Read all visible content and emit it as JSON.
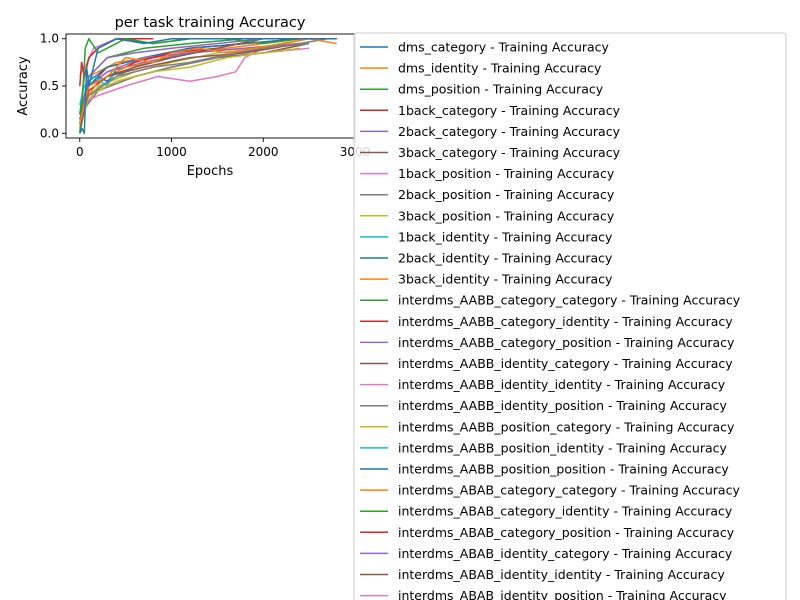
{
  "chart_data": {
    "type": "line",
    "title": "per task training Accuracy",
    "xlabel": "Epochs",
    "ylabel": "Accuracy",
    "xlim": [
      -150,
      3000
    ],
    "ylim": [
      -0.05,
      1.05
    ],
    "xticks": [
      0,
      1000,
      2000,
      3000
    ],
    "xtick_labels": [
      "0",
      "1000",
      "2000",
      "3000"
    ],
    "yticks": [
      0.0,
      0.5,
      1.0
    ],
    "ytick_labels": [
      "0.0",
      "0.5",
      "1.0"
    ],
    "grid": false,
    "legend_placement": "right, outside plot",
    "colors": [
      "#1f77b4",
      "#ff7f0e",
      "#2ca02c",
      "#d62728",
      "#9467bd",
      "#8c564b",
      "#e377c2",
      "#7f7f7f",
      "#bcbd22",
      "#17becf"
    ],
    "series": [
      {
        "name": "dms_category - Training Accuracy",
        "x": [
          0,
          25,
          50,
          75,
          100,
          200,
          400,
          700,
          1000,
          1500,
          2000,
          2500,
          2800
        ],
        "values": [
          0.0,
          0.05,
          0.0,
          0.7,
          0.5,
          0.9,
          1.0,
          0.95,
          1.0,
          1.0,
          1.0,
          1.0,
          1.0
        ]
      },
      {
        "name": "dms_identity - Training Accuracy",
        "x": [
          0,
          50,
          100,
          300,
          500,
          800,
          1000,
          1300,
          1600,
          1900,
          2200,
          2500,
          2800
        ],
        "values": [
          0.1,
          0.3,
          0.5,
          0.6,
          0.8,
          0.75,
          0.85,
          0.9,
          0.85,
          0.9,
          0.95,
          1.0,
          0.95
        ]
      },
      {
        "name": "dms_position - Training Accuracy",
        "x": [
          0,
          30,
          60,
          100,
          200,
          500,
          800,
          1200,
          1600,
          2000,
          2400,
          2800
        ],
        "values": [
          0.0,
          0.4,
          0.9,
          1.0,
          0.85,
          1.0,
          0.95,
          1.0,
          1.0,
          0.95,
          1.0,
          1.0
        ]
      },
      {
        "name": "1back_category - Training Accuracy",
        "x": [
          0,
          20,
          50,
          100,
          200,
          400,
          800
        ],
        "values": [
          0.5,
          0.75,
          0.6,
          0.8,
          0.9,
          1.0,
          1.0
        ]
      },
      {
        "name": "2back_category - Training Accuracy",
        "x": [
          0,
          50,
          100,
          300,
          600,
          1000,
          1500,
          2000
        ],
        "values": [
          0.1,
          0.4,
          0.6,
          0.8,
          0.85,
          0.9,
          0.95,
          1.0
        ]
      },
      {
        "name": "3back_category - Training Accuracy",
        "x": [
          0,
          100,
          300,
          600,
          1000,
          1500,
          2000
        ],
        "values": [
          0.0,
          0.5,
          0.6,
          0.7,
          0.8,
          0.9,
          1.0
        ]
      },
      {
        "name": "1back_position - Training Accuracy",
        "x": [
          0,
          20,
          60,
          150,
          400,
          800
        ],
        "values": [
          0.6,
          0.65,
          0.7,
          0.9,
          1.0,
          1.0
        ]
      },
      {
        "name": "2back_position - Training Accuracy",
        "x": [
          0,
          100,
          400,
          800,
          1200,
          1700,
          2000,
          2400,
          2700
        ],
        "values": [
          0.2,
          0.4,
          0.6,
          0.7,
          0.75,
          0.85,
          0.9,
          0.95,
          1.0
        ]
      },
      {
        "name": "3back_position - Training Accuracy",
        "x": [
          0,
          100,
          400,
          800,
          1200,
          1600,
          2000,
          2400
        ],
        "values": [
          0.1,
          0.4,
          0.55,
          0.65,
          0.7,
          0.8,
          0.85,
          0.9
        ]
      },
      {
        "name": "1back_identity - Training Accuracy",
        "x": [
          0,
          50,
          150,
          300,
          400
        ],
        "values": [
          0.3,
          0.5,
          0.6,
          0.5,
          0.7
        ]
      },
      {
        "name": "2back_identity - Training Accuracy",
        "x": [
          0,
          50,
          100,
          200,
          300,
          400
        ],
        "values": [
          0.2,
          0.35,
          0.5,
          0.6,
          0.55,
          0.65
        ]
      },
      {
        "name": "3back_identity - Training Accuracy",
        "x": [
          0,
          100,
          200,
          300,
          500,
          800,
          1000
        ],
        "values": [
          0.2,
          0.4,
          0.55,
          0.6,
          0.7,
          0.75,
          0.8
        ]
      },
      {
        "name": "interdms_AABB_category_category - Training Accuracy",
        "x": [
          0,
          50,
          100,
          200,
          400,
          800,
          1200,
          1600,
          2000,
          2400,
          2800
        ],
        "values": [
          0.2,
          0.6,
          0.8,
          0.9,
          1.0,
          0.95,
          1.0,
          1.0,
          1.0,
          1.0,
          1.0
        ]
      },
      {
        "name": "interdms_AABB_category_identity - Training Accuracy",
        "x": [
          0,
          100,
          300,
          600,
          1000,
          1500,
          2000
        ],
        "values": [
          0.1,
          0.45,
          0.6,
          0.75,
          0.85,
          0.9,
          1.0
        ]
      },
      {
        "name": "interdms_AABB_category_position - Training Accuracy",
        "x": [
          0,
          100,
          300,
          700,
          1200,
          1800,
          2400
        ],
        "values": [
          0.15,
          0.5,
          0.65,
          0.8,
          0.85,
          0.9,
          0.95
        ]
      },
      {
        "name": "interdms_AABB_identity_category - Training Accuracy",
        "x": [
          0,
          100,
          300,
          700,
          1200,
          1800,
          2400
        ],
        "values": [
          0.1,
          0.45,
          0.6,
          0.7,
          0.8,
          0.85,
          0.95
        ]
      },
      {
        "name": "interdms_AABB_identity_identity - Training Accuracy",
        "x": [
          0,
          200,
          500,
          850,
          1200,
          1500,
          1700,
          1800,
          2000
        ],
        "values": [
          0.3,
          0.4,
          0.5,
          0.6,
          0.55,
          0.6,
          0.65,
          0.8,
          0.9
        ]
      },
      {
        "name": "interdms_AABB_identity_position - Training Accuracy",
        "x": [
          0,
          200,
          600,
          1000,
          1500,
          2000,
          2500
        ],
        "values": [
          0.2,
          0.45,
          0.6,
          0.7,
          0.8,
          0.9,
          0.95
        ]
      },
      {
        "name": "interdms_AABB_position_category - Training Accuracy",
        "x": [
          0,
          200,
          600,
          1000,
          1500,
          2000,
          2500
        ],
        "values": [
          0.2,
          0.5,
          0.65,
          0.75,
          0.85,
          0.9,
          1.0
        ]
      },
      {
        "name": "interdms_AABB_position_identity - Training Accuracy",
        "x": [
          0,
          100,
          300,
          600,
          1000,
          1500
        ],
        "values": [
          0.15,
          0.4,
          0.55,
          0.7,
          0.8,
          0.9
        ]
      },
      {
        "name": "interdms_AABB_position_position - Training Accuracy",
        "x": [
          0,
          100,
          300,
          700,
          1200,
          1800,
          2400
        ],
        "values": [
          0.2,
          0.55,
          0.7,
          0.8,
          0.9,
          0.95,
          1.0
        ]
      },
      {
        "name": "interdms_ABAB_category_category - Training Accuracy",
        "x": [
          0,
          100,
          400,
          800,
          1200,
          1600,
          2000,
          2400,
          2800
        ],
        "values": [
          0.2,
          0.6,
          0.75,
          0.8,
          0.85,
          0.9,
          0.95,
          1.0,
          1.0
        ]
      },
      {
        "name": "interdms_ABAB_category_identity - Training Accuracy",
        "x": [
          0,
          100,
          300,
          700,
          1200,
          1800,
          2400,
          2800
        ],
        "values": [
          0.2,
          0.6,
          0.8,
          0.9,
          0.95,
          1.0,
          1.0,
          1.0
        ]
      },
      {
        "name": "interdms_ABAB_category_position - Training Accuracy",
        "x": [
          0,
          100,
          300,
          700,
          1200,
          1800,
          2400
        ],
        "values": [
          0.2,
          0.5,
          0.7,
          0.8,
          0.9,
          0.95,
          1.0
        ]
      },
      {
        "name": "interdms_ABAB_identity_category - Training Accuracy",
        "x": [
          0,
          100,
          300,
          700,
          1200,
          1800,
          2400
        ],
        "values": [
          0.15,
          0.5,
          0.65,
          0.75,
          0.85,
          0.9,
          0.95
        ]
      },
      {
        "name": "interdms_ABAB_identity_identity - Training Accuracy",
        "x": [
          0,
          200,
          600,
          1000,
          1500,
          2000,
          2500
        ],
        "values": [
          0.2,
          0.45,
          0.6,
          0.7,
          0.8,
          0.85,
          0.95
        ]
      },
      {
        "name": "interdms_ABAB_identity_position - Training Accuracy",
        "x": [
          0,
          200,
          600,
          1000,
          1500,
          2000,
          2500
        ],
        "values": [
          0.2,
          0.45,
          0.6,
          0.7,
          0.8,
          0.85,
          0.9
        ]
      }
    ]
  }
}
